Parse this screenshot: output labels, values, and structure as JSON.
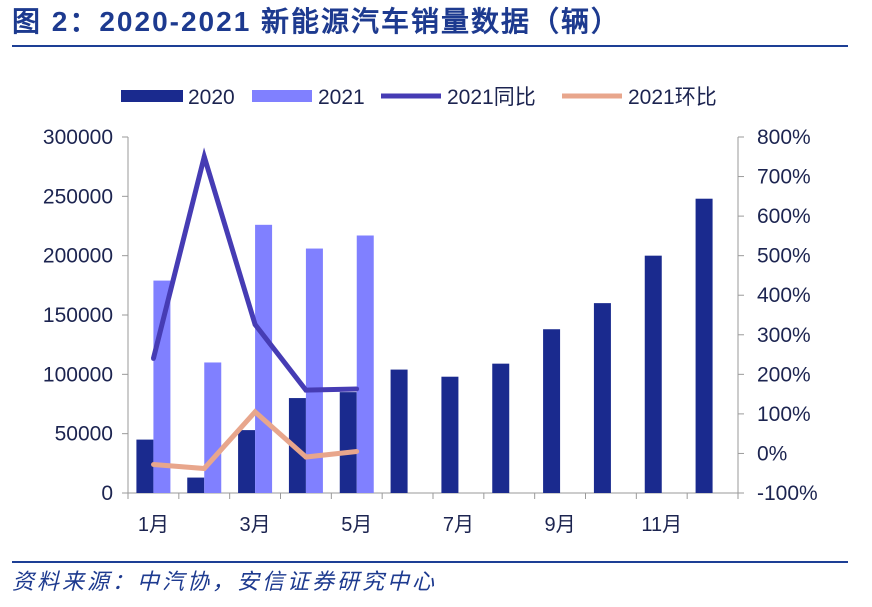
{
  "figure_label": "图 2：",
  "source": "资料来源：中汽协，安信证券研究中心",
  "chart_data": {
    "type": "bar",
    "title": "2020-2021 新能源汽车销量数据（辆）",
    "x": [
      1,
      2,
      3,
      4,
      5,
      6,
      7,
      8,
      9,
      10,
      11,
      12
    ],
    "x_tick_labels": [
      {
        "x": 1,
        "label": "1月"
      },
      {
        "x": 3,
        "label": "3月"
      },
      {
        "x": 5,
        "label": "5月"
      },
      {
        "x": 7,
        "label": "7月"
      },
      {
        "x": 9,
        "label": "9月"
      },
      {
        "x": 11,
        "label": "11月"
      }
    ],
    "series": [
      {
        "name": "2020",
        "type": "bar",
        "axis": "left",
        "color": "#1a2a8e",
        "values": [
          45000,
          13000,
          53000,
          80000,
          85000,
          104000,
          98000,
          109000,
          138000,
          160000,
          200000,
          248000
        ]
      },
      {
        "name": "2021",
        "type": "bar",
        "axis": "left",
        "color": "#8080ff",
        "values": [
          179000,
          110000,
          226000,
          206000,
          217000,
          null,
          null,
          null,
          null,
          null,
          null,
          null
        ]
      },
      {
        "name": "2021同比",
        "type": "line",
        "axis": "right",
        "color": "#463cb4",
        "values": [
          240,
          750,
          326,
          160,
          163,
          null,
          null,
          null,
          null,
          null,
          null,
          null
        ]
      },
      {
        "name": "2021环比",
        "type": "line",
        "axis": "right",
        "color": "#e8a68c",
        "values": [
          -28,
          -38,
          105,
          -9,
          5,
          null,
          null,
          null,
          null,
          null,
          null,
          null
        ]
      }
    ],
    "y_left": {
      "min": 0,
      "max": 300000,
      "step": 50000,
      "tick_labels": [
        "0",
        "50000",
        "100000",
        "150000",
        "200000",
        "250000",
        "300000"
      ]
    },
    "y_right": {
      "min": -100,
      "max": 800,
      "step": 100,
      "tick_labels": [
        "-100%",
        "0%",
        "100%",
        "200%",
        "300%",
        "400%",
        "500%",
        "600%",
        "700%",
        "800%"
      ]
    },
    "legend": "top",
    "grid": false
  }
}
